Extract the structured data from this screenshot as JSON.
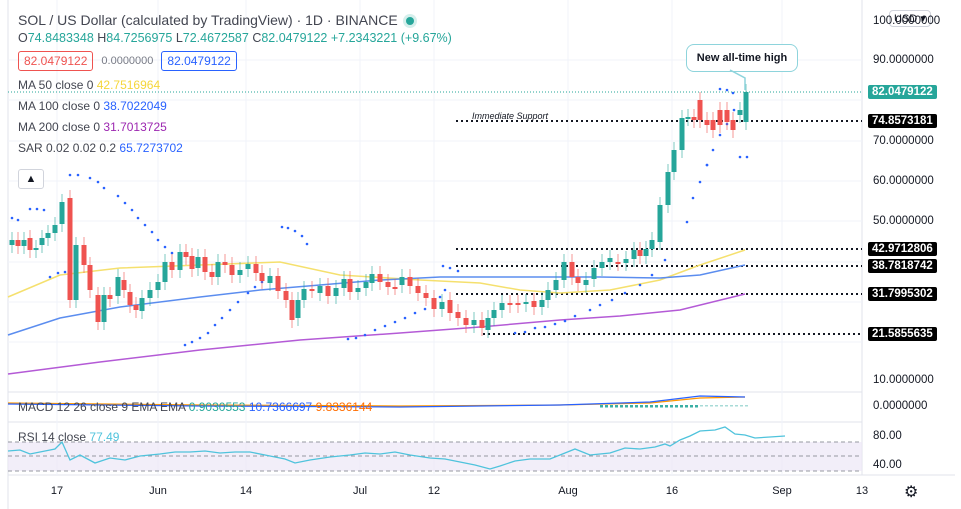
{
  "header": {
    "title": "SOL / US Dollar (calculated by TradingView) · 1D · BINANCE",
    "ohlc": {
      "o_label": "O",
      "o": "74.8483348",
      "h_label": "H",
      "h": "84.7256975",
      "l_label": "L",
      "l": "72.4672587",
      "c_label": "C",
      "c": "82.0479122",
      "change": "+7.2343221 (+9.67%)"
    },
    "bid": "82.0479122",
    "spread": "0.0000000",
    "ask": "82.0479122"
  },
  "indicators": [
    {
      "label": "MA 50 close 0",
      "value": "42.7516964",
      "color": "#f5d63a"
    },
    {
      "label": "MA 100 close 0",
      "value": "38.7022049",
      "color": "#2962ff"
    },
    {
      "label": "MA 200 close 0",
      "value": "31.7013725",
      "color": "#9c27b0"
    },
    {
      "label": "SAR 0.02 0.02 0.2",
      "value": "65.7273702",
      "color": "#2962ff"
    }
  ],
  "currency": "USD",
  "annotations": {
    "callout": "New all-time high",
    "support": "Immediate Support"
  },
  "price_axis": {
    "ticks": [
      "100.0000000",
      "90.0000000",
      "70.0000000",
      "60.0000000",
      "50.0000000",
      "10.0000000"
    ],
    "tags": [
      {
        "value": "82.0479122",
        "bg": "#26a69a"
      },
      {
        "value": "74.8573181",
        "bg": "#000000"
      },
      {
        "value": "42.9712806",
        "bg": "#000000"
      },
      {
        "value": "38.7818742",
        "bg": "#000000"
      },
      {
        "value": "31.7995302",
        "bg": "#000000"
      },
      {
        "value": "21.5855635",
        "bg": "#000000"
      }
    ]
  },
  "macd": {
    "label": "MACD 12 26 close 9 EMA EMA",
    "hist": "0.9030553",
    "macd": "10.7366697",
    "signal": "9.8336144",
    "axis": "0.0000000"
  },
  "rsi": {
    "label": "RSI 14 close",
    "value": "77.49",
    "axis": [
      "80.00",
      "40.00"
    ]
  },
  "time_axis": [
    "17",
    "Jun",
    "14",
    "Jul",
    "12",
    "Aug",
    "16",
    "Sep",
    "13"
  ],
  "chart_data": {
    "type": "candlestick",
    "title": "SOL / US Dollar · 1D · BINANCE",
    "x_range": "mid-May to late Aug 2021",
    "y_range": [
      5,
      100
    ],
    "last_close": 82.0479122,
    "horizontal_levels": [
      74.8573181,
      42.9712806,
      38.7818742,
      31.7995302,
      21.5855635
    ],
    "moving_averages": {
      "MA50": 42.7516964,
      "MA100": 38.7022049,
      "MA200": 31.7013725
    },
    "sar": 65.7273702,
    "rsi": 77.49,
    "macd": {
      "hist": 0.9030553,
      "macd": 10.7366697,
      "signal": 9.8336144
    },
    "x_tick_labels": [
      "17",
      "Jun",
      "14",
      "Jul",
      "12",
      "Aug",
      "16",
      "Sep",
      "13"
    ]
  }
}
